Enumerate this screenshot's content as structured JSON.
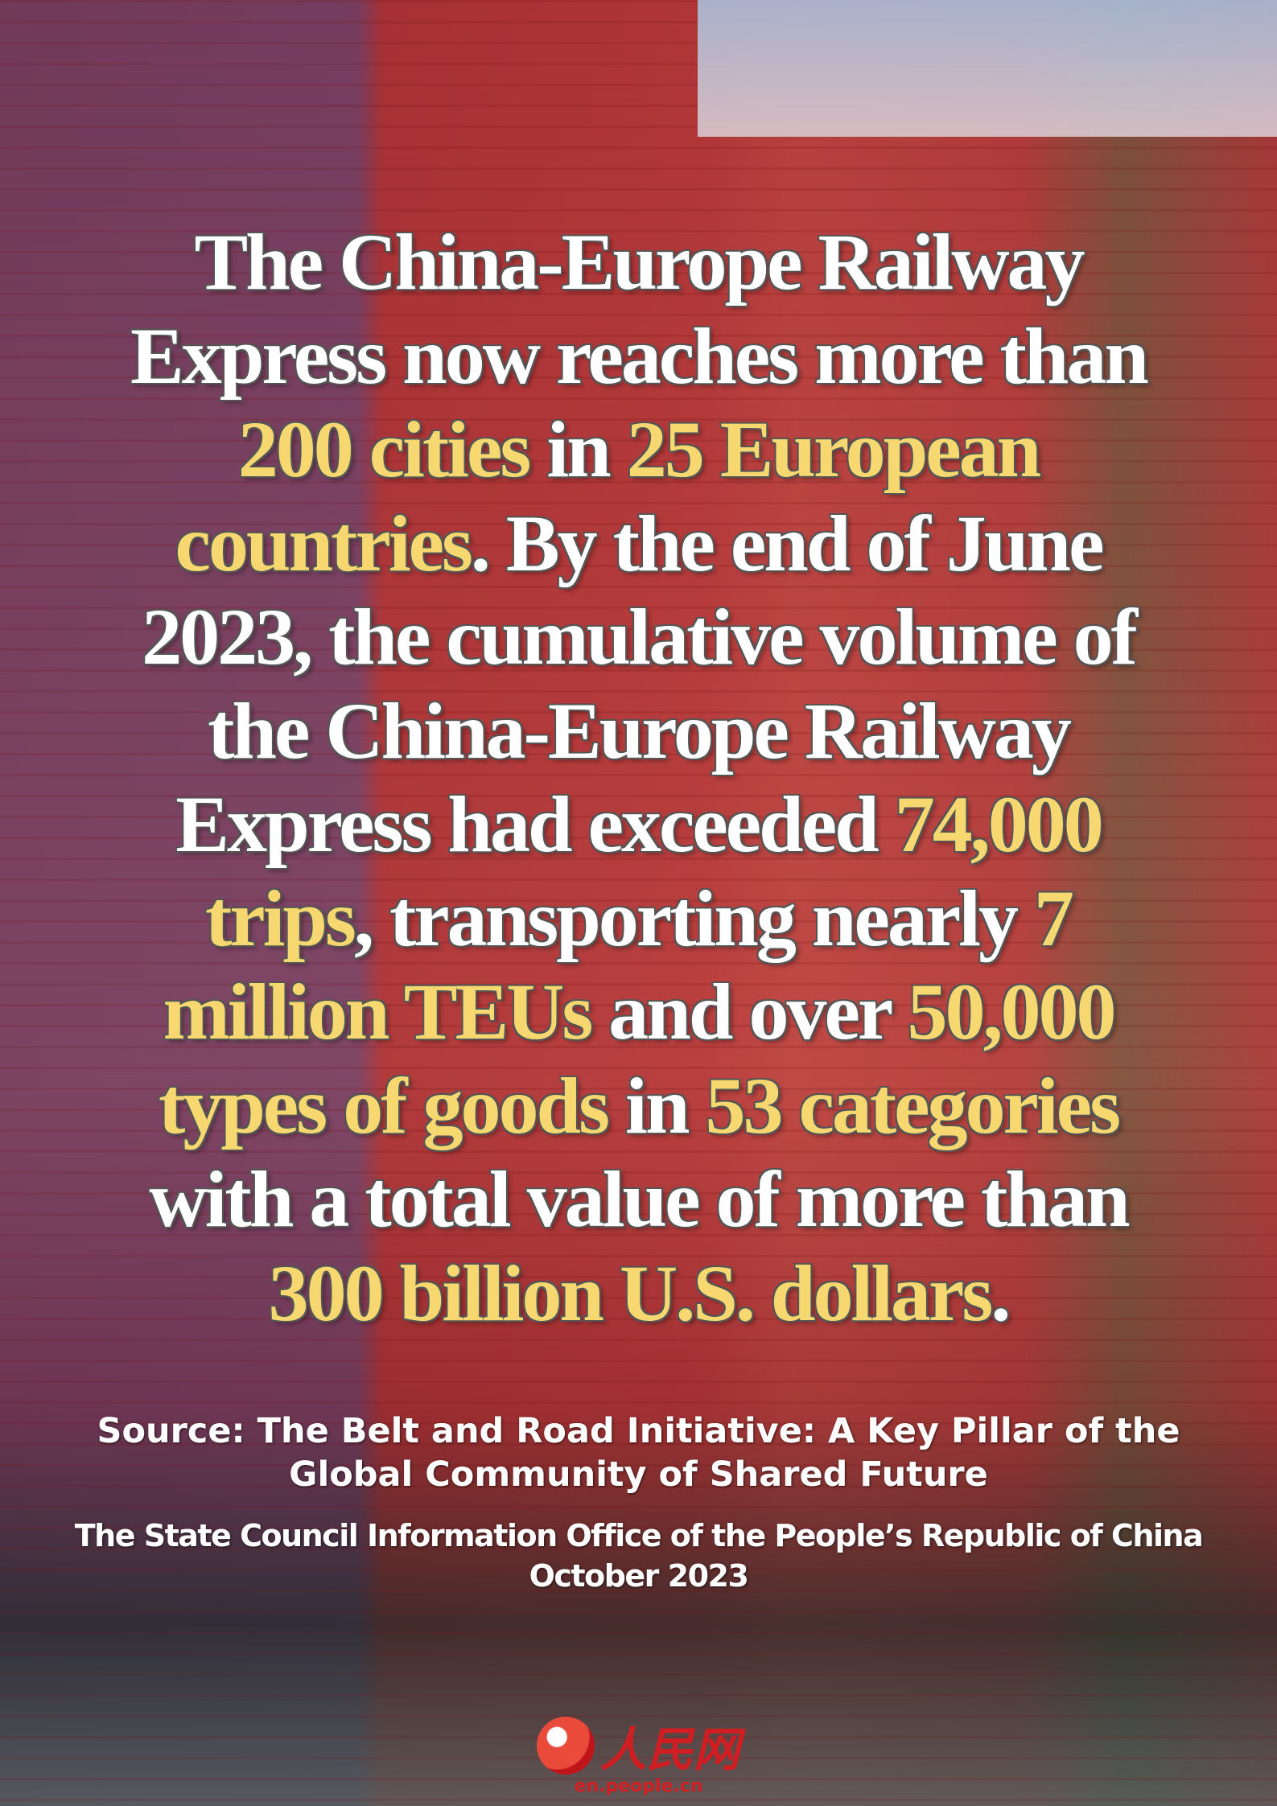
{
  "headline": {
    "segments": [
      {
        "text": "The China-Europe Railway Express now reaches more than ",
        "highlight": false
      },
      {
        "text": "200 cities",
        "highlight": true
      },
      {
        "text": " in ",
        "highlight": false
      },
      {
        "text": "25 European countries",
        "highlight": true
      },
      {
        "text": ". By the end of June 2023, the cumulative volume of the China-Europe Railway Express had exceeded ",
        "highlight": false
      },
      {
        "text": "74,000 trips",
        "highlight": true
      },
      {
        "text": ", transporting nearly ",
        "highlight": false
      },
      {
        "text": "7 million TEUs",
        "highlight": true
      },
      {
        "text": " and over ",
        "highlight": false
      },
      {
        "text": "50,000 types of goods",
        "highlight": true
      },
      {
        "text": " in ",
        "highlight": false
      },
      {
        "text": "53 categories",
        "highlight": true
      },
      {
        "text": " with a total value of more than ",
        "highlight": false
      },
      {
        "text": "300 billion U.S. dollars",
        "highlight": true
      },
      {
        "text": ".",
        "highlight": false
      }
    ]
  },
  "source": {
    "lines": [
      "Source: The Belt and Road Initiative: A Key Pillar of the",
      "Global Community of Shared Future"
    ]
  },
  "publisher": {
    "lines": [
      "The State Council Information Office of the People’s Republic of China",
      "October 2023"
    ]
  },
  "logo": {
    "name": "人民网",
    "url": "en.people.cn"
  }
}
